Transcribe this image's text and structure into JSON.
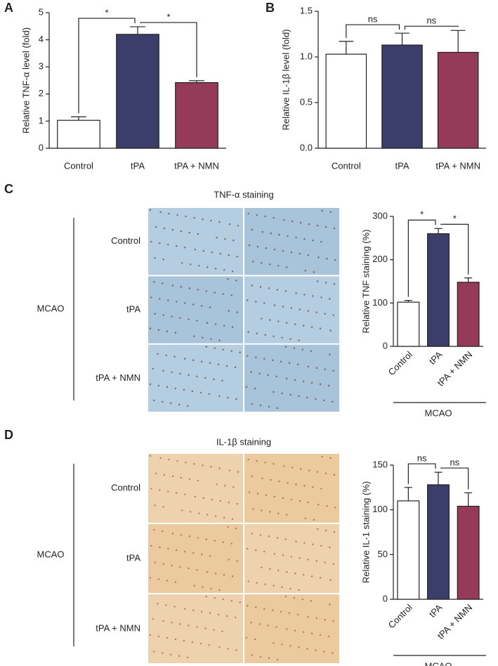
{
  "chart_data": [
    {
      "type": "bar",
      "panel": "A",
      "ylabel": "Relative TNF-α level (fold)",
      "categories": [
        "Control",
        "tPA",
        "tPA + NMN"
      ],
      "values": [
        1.03,
        4.2,
        2.42
      ],
      "errors": [
        0.13,
        0.28,
        0.07
      ],
      "colors": [
        "#ffffff",
        "#3b3e6b",
        "#963a5a"
      ],
      "ylim": [
        0,
        5
      ],
      "yticks": [
        0,
        1,
        2,
        3,
        4,
        5
      ],
      "annotations": [
        "*",
        "*"
      ]
    },
    {
      "type": "bar",
      "panel": "B",
      "ylabel": "Relative IL-1β level (fold)",
      "categories": [
        "Control",
        "tPA",
        "tPA + NMN"
      ],
      "values": [
        1.03,
        1.13,
        1.05
      ],
      "errors": [
        0.14,
        0.13,
        0.24
      ],
      "colors": [
        "#ffffff",
        "#3b3e6b",
        "#963a5a"
      ],
      "ylim": [
        0,
        1.5
      ],
      "yticks": [
        {
          "value": 0,
          "label": "0.0"
        },
        0.5,
        {
          "value": 1,
          "label": "1.0"
        },
        1.5
      ],
      "annotations": [
        "ns",
        "ns"
      ]
    },
    {
      "type": "bar",
      "ylabel": "Relative TNF staining (%)",
      "categories": [
        "Control",
        "tPA",
        "tPA + NMN"
      ],
      "values": [
        102,
        260,
        148
      ],
      "errors": [
        4,
        12,
        10
      ],
      "colors": [
        "#ffffff",
        "#3b3e6b",
        "#963a5a"
      ],
      "ylim": [
        0,
        300
      ],
      "yticks": [
        0,
        100,
        200,
        300
      ],
      "annotations": [
        "*",
        "*"
      ],
      "rotated_labels": true,
      "group_label": "MCAO"
    },
    {
      "type": "bar",
      "ylabel": "Relative IL-1 staining (%)",
      "categories": [
        "Control",
        "tPA",
        "tPA + NMN"
      ],
      "values": [
        110,
        128,
        104
      ],
      "errors": [
        15,
        14,
        15
      ],
      "colors": [
        "#ffffff",
        "#3b3e6b",
        "#963a5a"
      ],
      "ylim": [
        0,
        150
      ],
      "yticks": [
        0,
        50,
        100,
        150
      ],
      "annotations": [
        "ns",
        "ns"
      ],
      "rotated_labels": true,
      "group_label": "MCAO"
    }
  ],
  "staining": [
    {
      "panel": "C",
      "title": "TNF-α staining",
      "group": "MCAO",
      "rows": [
        "Control",
        "tPA",
        "tPA + NMN"
      ],
      "color": "#a8c4da"
    },
    {
      "panel": "D",
      "title": "IL-1β staining",
      "group": "MCAO",
      "rows": [
        "Control",
        "tPA",
        "tPA + NMN"
      ],
      "color": "#ebcaa0"
    }
  ]
}
